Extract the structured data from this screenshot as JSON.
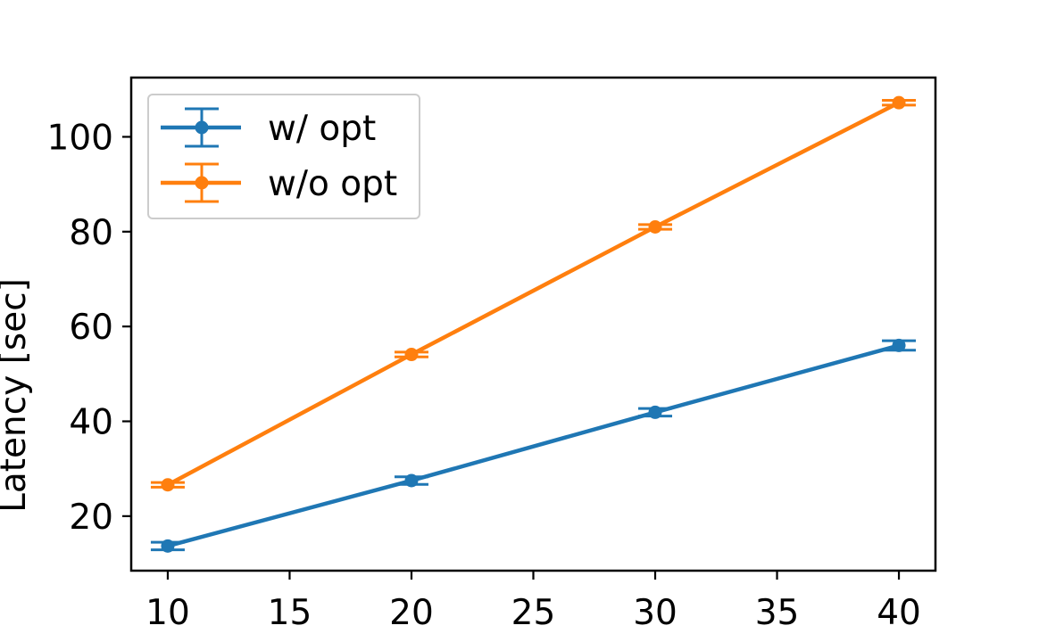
{
  "chart_data": {
    "type": "line",
    "title": "",
    "xlabel": "",
    "ylabel": "Latency [sec]",
    "xlim": [
      8.5,
      41.5
    ],
    "ylim": [
      8.5,
      112.5
    ],
    "xticks": [
      10,
      15,
      20,
      25,
      30,
      35,
      40
    ],
    "yticks": [
      20,
      40,
      60,
      80,
      100
    ],
    "grid": false,
    "legend_position": "top-left",
    "x": [
      10,
      20,
      30,
      40
    ],
    "series": [
      {
        "name": "w/ opt",
        "color": "#1f77b4",
        "values": [
          13.7,
          27.5,
          41.9,
          56.0
        ],
        "errors": [
          0.8,
          0.8,
          0.8,
          1.0
        ]
      },
      {
        "name": "w/o opt",
        "color": "#ff7f0e",
        "values": [
          26.6,
          54.1,
          81.0,
          107.2
        ],
        "errors": [
          0.5,
          0.5,
          0.5,
          0.5
        ]
      }
    ]
  }
}
